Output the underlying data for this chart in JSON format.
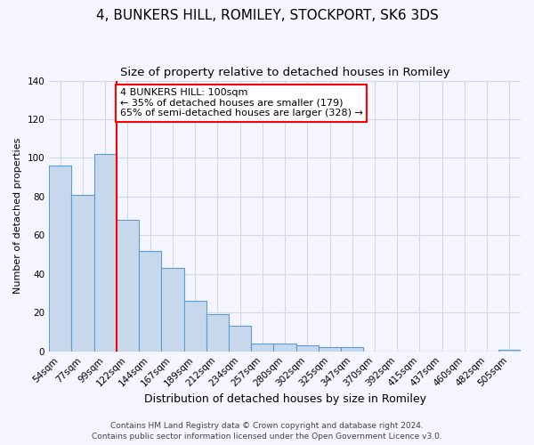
{
  "title": "4, BUNKERS HILL, ROMILEY, STOCKPORT, SK6 3DS",
  "subtitle": "Size of property relative to detached houses in Romiley",
  "xlabel": "Distribution of detached houses by size in Romiley",
  "ylabel": "Number of detached properties",
  "bar_labels": [
    "54sqm",
    "77sqm",
    "99sqm",
    "122sqm",
    "144sqm",
    "167sqm",
    "189sqm",
    "212sqm",
    "234sqm",
    "257sqm",
    "280sqm",
    "302sqm",
    "325sqm",
    "347sqm",
    "370sqm",
    "392sqm",
    "415sqm",
    "437sqm",
    "460sqm",
    "482sqm",
    "505sqm"
  ],
  "bar_values": [
    96,
    81,
    102,
    68,
    52,
    43,
    26,
    19,
    13,
    4,
    4,
    3,
    2,
    2,
    0,
    0,
    0,
    0,
    0,
    0,
    1
  ],
  "bar_color": "#c8d8ec",
  "bar_edge_color": "#5b9bd5",
  "vline_x_index": 2,
  "vline_color": "red",
  "ylim": [
    0,
    140
  ],
  "yticks": [
    0,
    20,
    40,
    60,
    80,
    100,
    120,
    140
  ],
  "annotation_title": "4 BUNKERS HILL: 100sqm",
  "annotation_line1": "← 35% of detached houses are smaller (179)",
  "annotation_line2": "65% of semi-detached houses are larger (328) →",
  "annotation_box_color": "#ffffff",
  "annotation_box_edge": "red",
  "footer1": "Contains HM Land Registry data © Crown copyright and database right 2024.",
  "footer2": "Contains public sector information licensed under the Open Government Licence v3.0.",
  "title_fontsize": 11,
  "subtitle_fontsize": 9.5,
  "xlabel_fontsize": 9,
  "ylabel_fontsize": 8,
  "tick_fontsize": 7.5,
  "annotation_fontsize": 8,
  "footer_fontsize": 6.5,
  "background_color": "#f5f5ff",
  "grid_color": "#d0d8e8"
}
